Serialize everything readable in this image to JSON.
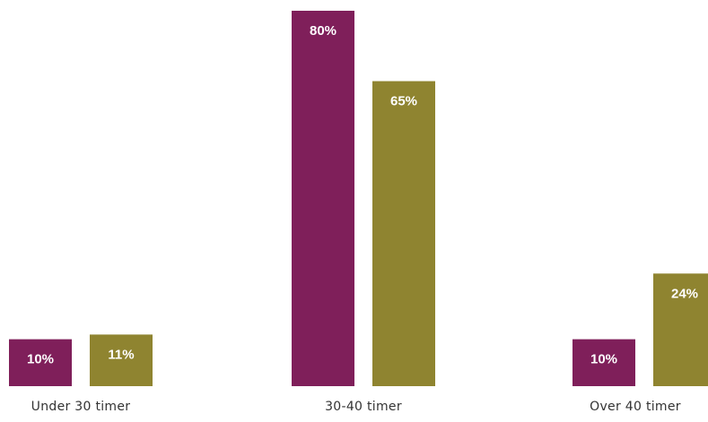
{
  "chart_data": {
    "type": "bar",
    "categories": [
      "Under 30 timer",
      "30-40 timer",
      "Over 40 timer"
    ],
    "series": [
      {
        "values": [
          10,
          80,
          10
        ],
        "labels": [
          "10%",
          "80%",
          "10%"
        ]
      },
      {
        "values": [
          11,
          65,
          24
        ],
        "labels": [
          "11%",
          "65%",
          "24%"
        ]
      }
    ],
    "title": "",
    "xlabel": "",
    "ylabel": "",
    "ylim": [
      0,
      80
    ],
    "grid": false,
    "legend": "none",
    "colors": [
      "#7f1f5a",
      "#8f8430"
    ]
  }
}
